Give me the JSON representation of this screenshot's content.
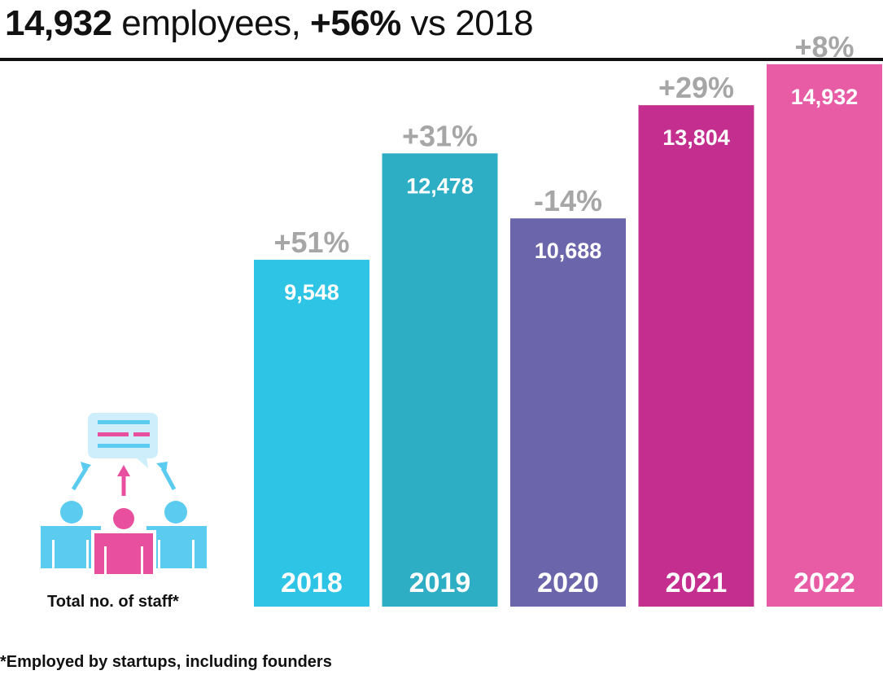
{
  "headline": {
    "count": "14,932",
    "text1": " employees, ",
    "growth": "+56%",
    "text2": " vs 2018"
  },
  "icon": {
    "name": "staff-group-icon",
    "label": "Total no. of staff*"
  },
  "footnote": "*Employed by startups, including founders",
  "colors": {
    "2018": "#2ec4e6",
    "2019": "#2eaec5",
    "2020": "#6b66ab",
    "2021": "#c42e8e",
    "2022": "#e85ca5",
    "growth_label": "#a6a6a6",
    "icon_blue": "#5ccbf0",
    "icon_pink": "#e84f9f",
    "bubble": "#cfeefb"
  },
  "chart_data": {
    "type": "bar",
    "categories": [
      "2018",
      "2019",
      "2020",
      "2021",
      "2022"
    ],
    "values": [
      9548,
      12478,
      10688,
      13804,
      14932
    ],
    "value_labels": [
      "9,548",
      "12,478",
      "10,688",
      "13,804",
      "14,932"
    ],
    "growth_labels": [
      "+51%",
      "+31%",
      "-14%",
      "+29%",
      "+8%"
    ],
    "title": "",
    "xlabel": "",
    "ylabel": "",
    "ylim": [
      0,
      16700
    ],
    "grid": false,
    "legend": "none"
  }
}
